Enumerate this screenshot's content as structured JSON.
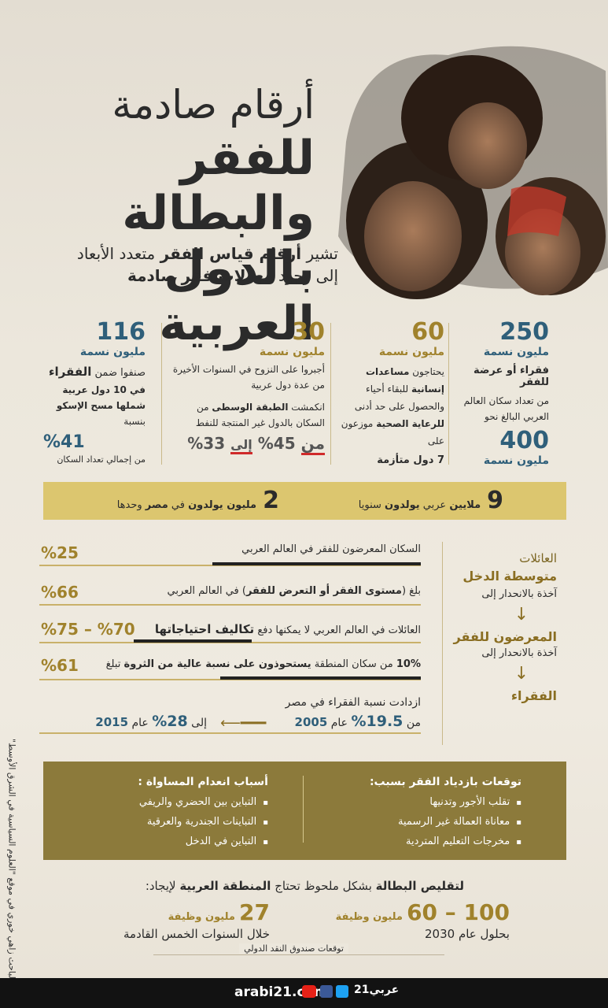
{
  "header": {
    "title": [
      "أرقام صادمة",
      "للفقر والبطالة",
      "بالدول العربية"
    ],
    "subtitle": [
      [
        "تشير ",
        "أرقام قياس الفقر",
        " متعدد الأبعاد"
      ],
      [
        "إلى وجود ",
        "معدلات فقر صادمة"
      ]
    ]
  },
  "stats": [
    {
      "number": "250",
      "unit": "مليون نسمة",
      "title": "فقراء أو عرضة للفقر",
      "text": "من تعداد سكان العالم العربي البالغ نحو",
      "number2": "400",
      "unit2": "مليون نسمة"
    },
    {
      "number": "60",
      "unit": "مليون نسمة",
      "text": [
        "يحتاجون ",
        "مساعدات إنسانية",
        " للبقاء أحياء والحصول على حد أدنى ",
        "للرعاية الصحية",
        " موزعون على"
      ],
      "note": "7 دول متأزمة"
    },
    {
      "number": "30",
      "unit": "مليون نسمة",
      "text": "أجبروا على النزوح في السنوات الأخيرة من عدة دول عربية",
      "text2": [
        "انكمشت ",
        "الطبقة الوسطى",
        " من السكان بالدول غير المنتجة للنفط"
      ],
      "change": [
        "من",
        "%45",
        "إلى",
        "%33"
      ]
    },
    {
      "number": "116",
      "unit": "مليون نسمة",
      "text": [
        "صنفوا ضمن ",
        "الفقراء"
      ],
      "text2": [
        "في 10 دول عربية شملها مسح الإسكو",
        " بنسبة"
      ],
      "percent": "%41",
      "note": "من إجمالي تعداد السكان"
    }
  ],
  "births": [
    {
      "number": "9",
      "text": [
        "ملايين",
        " عربي ",
        "يولدون",
        " سنويا"
      ]
    },
    {
      "number": "2",
      "text": [
        "مليون يولدون",
        " في ",
        "مصر",
        " وحدها"
      ]
    }
  ],
  "decline": [
    {
      "label": "العائلات",
      "title": "متوسطة الدخل",
      "note": "آخذة بالانحدار إلى"
    },
    {
      "title": "المعرضون للفقر",
      "note": "آخذة بالانحدار إلى"
    },
    {
      "title": "الفقراء"
    }
  ],
  "rates": [
    {
      "text": [
        "السكان المعرضون للفقر في العالم العربي"
      ],
      "value": "%25"
    },
    {
      "text": [
        "بلغ (",
        "مستوى الفقر أو التعرض للفقر",
        ")  في العالم العربي"
      ],
      "value": "%66"
    },
    {
      "text": [
        "العائلات في العالم العربي لا يمكنها دفع ",
        "تكاليف احتياجاتها"
      ],
      "value": "%75 – %70"
    },
    {
      "text": [
        "10%",
        " من سكان المنطقة ",
        "يستحوذون على نسبة عالية من الثروة",
        " تبلغ"
      ],
      "value": "%61"
    }
  ],
  "egypt": {
    "text": "ازدادت نسبة الفقراء في مصر",
    "from": [
      "من",
      "%19.5",
      "عام",
      "2005"
    ],
    "to": [
      "إلى",
      "%28",
      "عام",
      "2015"
    ]
  },
  "causes": [
    {
      "heading": "توقعات بازدياد الفقر بسبب:",
      "items": [
        "تقلب الأجور وتدنيها",
        "معاناة العمالة غير الرسمية",
        "مخرجات التعليم المتردية"
      ]
    },
    {
      "heading": "أسباب انعدام المساواة :",
      "items": [
        "التباين بين الحضري والريفي",
        "التباينات الجندرية والعرقية",
        "التباين في الدخل"
      ]
    }
  ],
  "jobs": {
    "intro": [
      "لتقليص ",
      "البطالة",
      " بشكل ملحوظ تحتاج ",
      "المنطقة العربية",
      " لإيجاد:"
    ],
    "targets": [
      {
        "number": "60 – 100",
        "unit": "مليون وظيفة",
        "when": "بحلول عام 2030"
      },
      {
        "number": "27",
        "unit": "مليون وظيفة",
        "when": "خلال السنوات الخمس القادمة"
      }
    ],
    "source": "توقعات صندوق النقد الدولي"
  },
  "source": "المصدر: الباحث زاهي خوري في موقع \"العلوم السياسية في الشرق الأوسط\"",
  "footer": {
    "site": "arabi21.com",
    "brand": "عربي21"
  }
}
